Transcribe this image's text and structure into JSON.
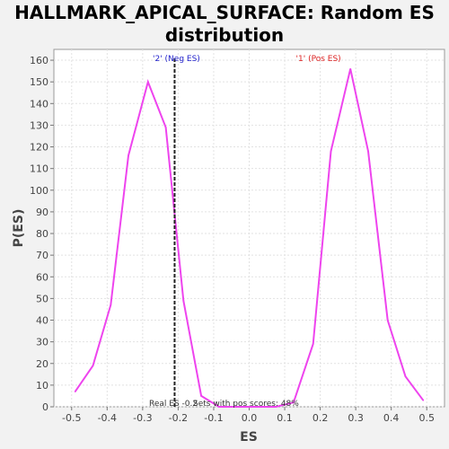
{
  "chart_data": {
    "type": "line",
    "title_line1": "HALLMARK_APICAL_SURFACE: Random ES",
    "title_line2": "distribution",
    "xlabel": "ES",
    "ylabel": "P(ES)",
    "xlim": [
      -0.55,
      0.55
    ],
    "ylim": [
      0,
      165
    ],
    "x_ticks": [
      "-0.5",
      "-0.4",
      "-0.3",
      "-0.2",
      "-0.1",
      "0.0",
      "0.1",
      "0.2",
      "0.3",
      "0.4",
      "0.5"
    ],
    "x_tick_values": [
      -0.5,
      -0.4,
      -0.3,
      -0.2,
      -0.1,
      0.0,
      0.1,
      0.2,
      0.3,
      0.4,
      0.5
    ],
    "y_ticks": [
      0,
      10,
      20,
      30,
      40,
      50,
      60,
      70,
      80,
      90,
      100,
      110,
      120,
      130,
      140,
      150,
      160
    ],
    "grid": true,
    "series": [
      {
        "color": "#ee44ee",
        "points": [
          [
            -0.49,
            7
          ],
          [
            -0.44,
            19
          ],
          [
            -0.39,
            47
          ],
          [
            -0.34,
            116
          ],
          [
            -0.285,
            150
          ],
          [
            -0.235,
            129
          ],
          [
            -0.185,
            49
          ],
          [
            -0.135,
            5
          ],
          [
            -0.085,
            0
          ],
          [
            -0.03,
            0
          ],
          [
            0.02,
            0
          ],
          [
            0.075,
            0
          ],
          [
            0.125,
            2
          ],
          [
            0.18,
            29
          ],
          [
            0.23,
            118
          ],
          [
            0.285,
            156
          ],
          [
            0.335,
            118
          ],
          [
            0.39,
            40
          ],
          [
            0.44,
            14
          ],
          [
            0.49,
            3
          ]
        ]
      }
    ],
    "real_es": -0.21,
    "real_es_label": "Real ES -0.2",
    "neg_label": "'2' (Neg ES)",
    "neg_color": "#2222cc",
    "pos_label": "'1' (Pos ES)",
    "pos_color": "#dd2222",
    "pos_scores_note": "Sets with pos scores: 48%"
  }
}
